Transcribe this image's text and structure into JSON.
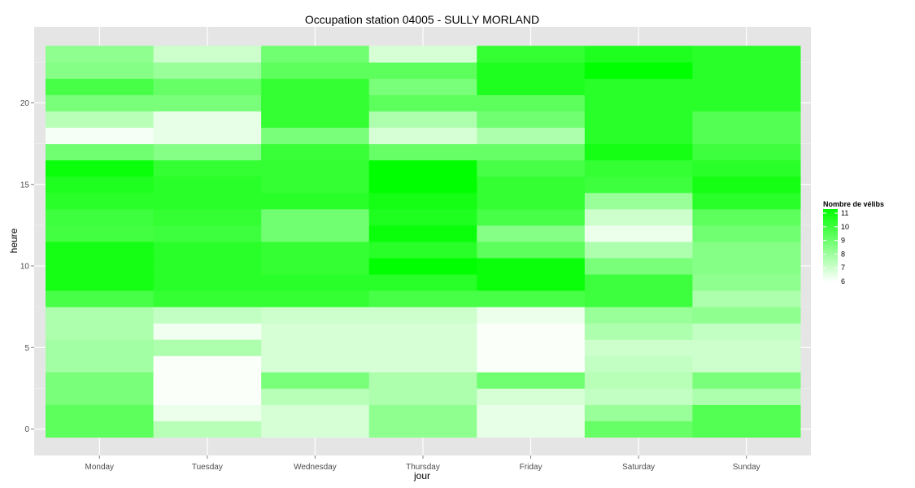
{
  "chart_data": {
    "type": "heatmap",
    "title": "Occupation station 04005 - SULLY MORLAND",
    "xlabel": "jour",
    "ylabel": "heure",
    "x_categories": [
      "Monday",
      "Tuesday",
      "Wednesday",
      "Thursday",
      "Friday",
      "Saturday",
      "Sunday"
    ],
    "y_hours": [
      0,
      1,
      2,
      3,
      4,
      5,
      6,
      7,
      8,
      9,
      10,
      11,
      12,
      13,
      14,
      15,
      16,
      17,
      18,
      19,
      20,
      21,
      22,
      23
    ],
    "ylim": [
      -0.5,
      23.5
    ],
    "y_ticks": [
      0,
      5,
      10,
      15,
      20
    ],
    "grid": true,
    "panel_background": "#e5e5e5",
    "legend": {
      "title": "Nombre de vélibs",
      "position": "right",
      "breaks": [
        11,
        10,
        9,
        8,
        7,
        6
      ],
      "min": 6,
      "max": 11,
      "low_color": "#ffffff",
      "high_color": "#00ff00"
    },
    "values": {
      "Monday": [
        9.2,
        9.2,
        8.6,
        8.6,
        7.8,
        7.8,
        7.6,
        7.6,
        9.6,
        10.6,
        10.6,
        10.6,
        9.7,
        9.8,
        10.2,
        10.4,
        10.8,
        8.8,
        6.2,
        7.4,
        8.6,
        9.6,
        8.4,
        8.2
      ],
      "Tuesday": [
        7.4,
        6.4,
        6.1,
        6.1,
        6.1,
        7.6,
        6.3,
        7.2,
        10.0,
        10.2,
        10.2,
        10.2,
        9.8,
        10.0,
        10.2,
        10.2,
        10.0,
        8.4,
        6.5,
        6.5,
        8.6,
        9.0,
        8.0,
        7.0
      ],
      "Wednesday": [
        6.8,
        6.8,
        7.4,
        8.6,
        6.8,
        6.8,
        6.8,
        7.0,
        10.0,
        10.2,
        10.0,
        10.0,
        8.8,
        8.8,
        10.2,
        10.0,
        10.0,
        9.9,
        8.6,
        10.0,
        10.0,
        10.0,
        9.2,
        8.8
      ],
      "Thursday": [
        8.2,
        8.2,
        7.6,
        7.6,
        6.8,
        6.8,
        6.8,
        7.0,
        9.6,
        10.2,
        11.0,
        10.2,
        10.8,
        10.4,
        10.6,
        11.0,
        11.0,
        9.0,
        6.8,
        7.6,
        9.2,
        8.6,
        9.2,
        6.8
      ],
      "Friday": [
        6.5,
        6.5,
        6.8,
        8.8,
        6.1,
        6.1,
        6.1,
        6.4,
        9.6,
        10.8,
        10.8,
        9.2,
        8.4,
        9.6,
        10.0,
        10.0,
        9.6,
        9.0,
        7.6,
        8.8,
        9.2,
        10.4,
        10.4,
        10.0
      ],
      "Saturday": [
        9.0,
        8.0,
        7.2,
        7.4,
        7.2,
        7.0,
        7.6,
        8.0,
        9.8,
        9.8,
        8.6,
        7.6,
        6.4,
        7.0,
        8.0,
        9.8,
        10.0,
        10.6,
        10.2,
        10.2,
        10.2,
        10.2,
        11.0,
        10.4
      ],
      "Sunday": [
        9.4,
        9.4,
        7.6,
        8.6,
        7.0,
        7.0,
        7.2,
        8.2,
        7.6,
        8.2,
        8.4,
        8.4,
        8.8,
        9.2,
        10.2,
        10.6,
        10.2,
        9.8,
        9.4,
        9.4,
        10.2,
        10.2,
        10.2,
        10.2
      ]
    }
  }
}
